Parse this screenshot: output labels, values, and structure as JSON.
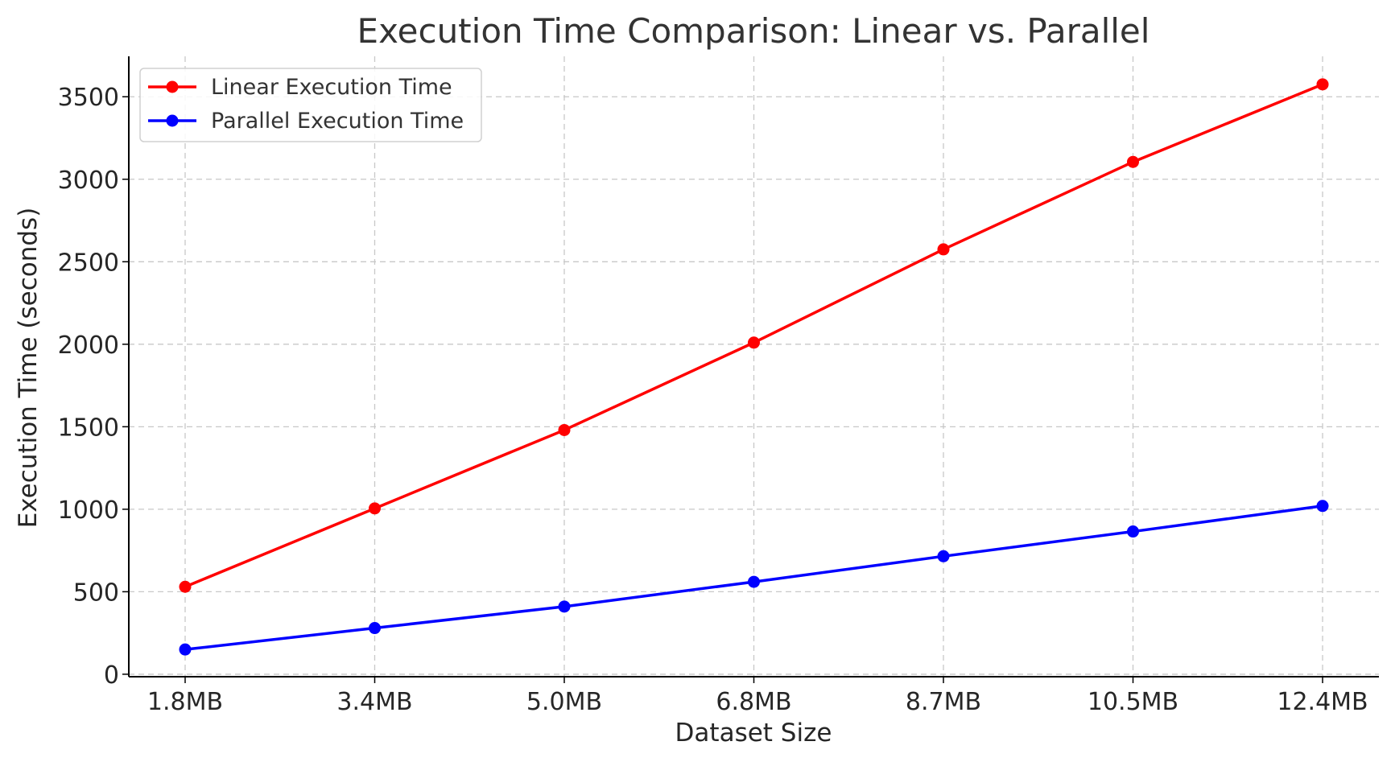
{
  "chart_data": {
    "type": "line",
    "title": "Execution Time Comparison: Linear vs. Parallel",
    "xlabel": "Dataset Size",
    "ylabel": "Execution Time (seconds)",
    "categories": [
      "1.8MB",
      "3.4MB",
      "5.0MB",
      "6.8MB",
      "8.7MB",
      "10.5MB",
      "12.4MB"
    ],
    "series": [
      {
        "name": "Linear Execution Time",
        "color": "#ff0000",
        "values": [
          530,
          1005,
          1480,
          2010,
          2575,
          3105,
          3575
        ]
      },
      {
        "name": "Parallel Execution Time",
        "color": "#0000ff",
        "values": [
          150,
          280,
          410,
          560,
          715,
          865,
          1020
        ]
      }
    ],
    "yticks": [
      0,
      500,
      1000,
      1500,
      2000,
      2500,
      3000,
      3500
    ],
    "ylim": [
      -15,
      3745
    ],
    "grid": true,
    "legend_position": "top-left"
  }
}
